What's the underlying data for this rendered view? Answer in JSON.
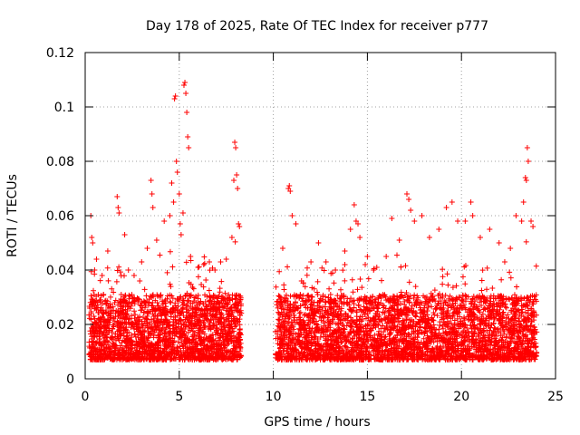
{
  "chart_data": {
    "type": "scatter",
    "title": "Day 178 of 2025, Rate Of TEC Index for receiver p777",
    "xlabel": "GPS time / hours",
    "ylabel": "ROTI / TECUs",
    "xlim": [
      0,
      25
    ],
    "ylim": [
      0,
      0.12
    ],
    "xticks": [
      0,
      5,
      10,
      15,
      20,
      25
    ],
    "xtick_labels": [
      "0",
      "5",
      "10",
      "15",
      "20",
      "25"
    ],
    "yticks": [
      0,
      0.02,
      0.04,
      0.06,
      0.08,
      0.1,
      0.12
    ],
    "ytick_labels": [
      "0",
      "0.02",
      "0.04",
      "0.06",
      "0.08",
      "0.1",
      "0.12"
    ],
    "grid": true,
    "marker": "plus",
    "color": "#ff0000",
    "data_gap_hours": [
      8.3,
      10.1
    ],
    "series": [
      {
        "name": "p777",
        "points": [
          [
            0.3,
            0.06
          ],
          [
            0.35,
            0.052
          ],
          [
            0.4,
            0.05
          ],
          [
            0.5,
            0.04
          ],
          [
            0.6,
            0.044
          ],
          [
            0.9,
            0.038
          ],
          [
            1.2,
            0.047
          ],
          [
            1.7,
            0.067
          ],
          [
            1.75,
            0.063
          ],
          [
            1.8,
            0.061
          ],
          [
            2.1,
            0.053
          ],
          [
            2.3,
            0.04
          ],
          [
            2.6,
            0.038
          ],
          [
            2.9,
            0.036
          ],
          [
            3.0,
            0.043
          ],
          [
            3.3,
            0.048
          ],
          [
            3.5,
            0.073
          ],
          [
            3.55,
            0.068
          ],
          [
            3.6,
            0.063
          ],
          [
            3.8,
            0.051
          ],
          [
            4.2,
            0.058
          ],
          [
            4.5,
            0.06
          ],
          [
            4.6,
            0.072
          ],
          [
            4.7,
            0.065
          ],
          [
            4.75,
            0.103
          ],
          [
            4.8,
            0.104
          ],
          [
            4.85,
            0.08
          ],
          [
            4.9,
            0.076
          ],
          [
            5.0,
            0.068
          ],
          [
            5.05,
            0.057
          ],
          [
            5.1,
            0.053
          ],
          [
            5.2,
            0.061
          ],
          [
            5.25,
            0.108
          ],
          [
            5.3,
            0.109
          ],
          [
            5.35,
            0.105
          ],
          [
            5.4,
            0.098
          ],
          [
            5.45,
            0.089
          ],
          [
            5.5,
            0.085
          ],
          [
            5.6,
            0.045
          ],
          [
            6.0,
            0.041
          ],
          [
            6.3,
            0.042
          ],
          [
            6.6,
            0.043
          ],
          [
            6.9,
            0.04
          ],
          [
            7.2,
            0.043
          ],
          [
            7.5,
            0.044
          ],
          [
            7.8,
            0.052
          ],
          [
            7.9,
            0.073
          ],
          [
            7.95,
            0.087
          ],
          [
            8.0,
            0.085
          ],
          [
            8.05,
            0.075
          ],
          [
            8.1,
            0.07
          ],
          [
            8.15,
            0.057
          ],
          [
            8.2,
            0.056
          ],
          [
            10.5,
            0.048
          ],
          [
            10.8,
            0.07
          ],
          [
            10.85,
            0.071
          ],
          [
            10.9,
            0.069
          ],
          [
            11.0,
            0.06
          ],
          [
            11.2,
            0.057
          ],
          [
            11.5,
            0.036
          ],
          [
            12.0,
            0.043
          ],
          [
            12.4,
            0.05
          ],
          [
            12.8,
            0.043
          ],
          [
            13.3,
            0.04
          ],
          [
            13.8,
            0.047
          ],
          [
            14.1,
            0.055
          ],
          [
            14.3,
            0.064
          ],
          [
            14.4,
            0.058
          ],
          [
            14.5,
            0.057
          ],
          [
            14.6,
            0.052
          ],
          [
            15.0,
            0.045
          ],
          [
            15.5,
            0.041
          ],
          [
            16.0,
            0.045
          ],
          [
            16.3,
            0.059
          ],
          [
            16.7,
            0.051
          ],
          [
            17.1,
            0.068
          ],
          [
            17.2,
            0.066
          ],
          [
            17.3,
            0.062
          ],
          [
            17.5,
            0.058
          ],
          [
            17.9,
            0.06
          ],
          [
            18.3,
            0.052
          ],
          [
            18.8,
            0.055
          ],
          [
            19.2,
            0.063
          ],
          [
            19.5,
            0.065
          ],
          [
            19.8,
            0.058
          ],
          [
            20.2,
            0.058
          ],
          [
            20.5,
            0.065
          ],
          [
            20.6,
            0.06
          ],
          [
            21.0,
            0.052
          ],
          [
            21.5,
            0.055
          ],
          [
            22.0,
            0.05
          ],
          [
            22.3,
            0.043
          ],
          [
            22.6,
            0.048
          ],
          [
            22.9,
            0.06
          ],
          [
            23.2,
            0.058
          ],
          [
            23.3,
            0.065
          ],
          [
            23.4,
            0.074
          ],
          [
            23.45,
            0.073
          ],
          [
            23.5,
            0.085
          ],
          [
            23.55,
            0.08
          ],
          [
            23.7,
            0.058
          ],
          [
            23.8,
            0.056
          ]
        ]
      }
    ]
  }
}
